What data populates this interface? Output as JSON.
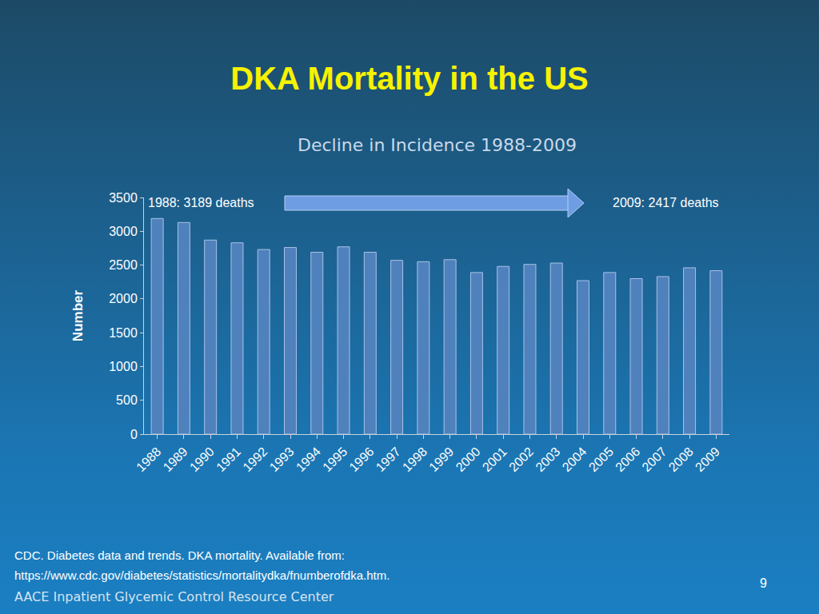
{
  "chart_data": {
    "type": "bar",
    "title": "DKA Mortality in the US",
    "subtitle": "Decline in Incidence 1988-2009",
    "y_label": "Number",
    "categories": [
      "1988",
      "1989",
      "1990",
      "1991",
      "1992",
      "1993",
      "1994",
      "1995",
      "1996",
      "1997",
      "1998",
      "1999",
      "2000",
      "2001",
      "2002",
      "2003",
      "2004",
      "2005",
      "2006",
      "2007",
      "2008",
      "2009"
    ],
    "values": [
      3189,
      3130,
      2870,
      2830,
      2730,
      2760,
      2690,
      2770,
      2690,
      2570,
      2550,
      2580,
      2390,
      2480,
      2510,
      2530,
      2270,
      2390,
      2300,
      2330,
      2460,
      2417
    ],
    "color": "#4f81bd",
    "ylim": [
      0,
      3500
    ],
    "yticks": [
      0,
      500,
      1000,
      1500,
      2000,
      2500,
      3000,
      3500
    ],
    "grid": false,
    "annotations": [
      "1988: 3189 deaths",
      "2009: 2417 deaths"
    ]
  },
  "source": [
    "CDC. Diabetes data and trends. DKA mortality. Available from:",
    "https://www.cdc.gov/diabetes/statistics/mortalitydka/fnumberofdka.htm."
  ],
  "footer": "AACE Inpatient Glycemic Control Resource Center",
  "page_number": 9
}
